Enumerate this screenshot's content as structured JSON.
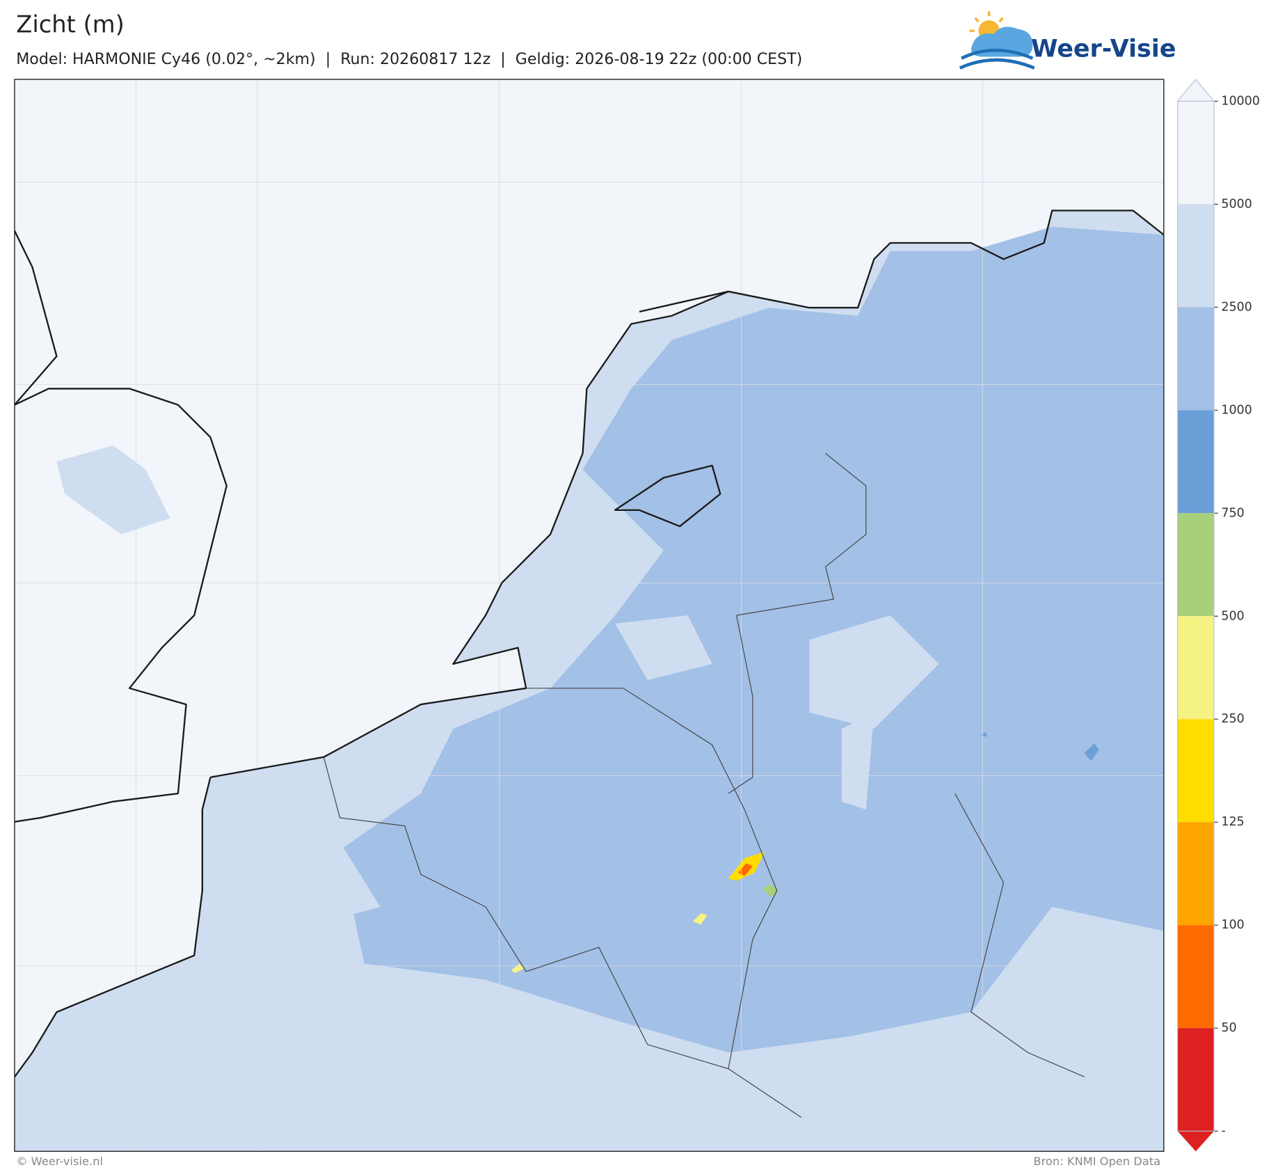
{
  "header": {
    "title": "Zicht (m)",
    "subtitle": "Model: HARMONIE Cy46 (0.02°, ~2km)  |  Run: 20260817 12z  |  Geldig: 2026-08-19 22z (00:00 CEST)",
    "logo": "Weer-Visie"
  },
  "colorbar": {
    "levels": [
      10000,
      5000,
      2500,
      1000,
      750,
      500,
      250,
      125,
      100,
      50
    ],
    "lowest_label": "-",
    "colors": [
      "#f2f5fa",
      "#cfddf0",
      "#a3c0e6",
      "#6b9fd8",
      "#a8d07a",
      "#f5f384",
      "#ffdd00",
      "#ffa500",
      "#ff6a00",
      "#dd2020"
    ],
    "over_color": "#f2f5fa"
  },
  "footer": {
    "copyright": "© Weer-visie.nl",
    "source": "Bron: KNMI Open Data"
  }
}
